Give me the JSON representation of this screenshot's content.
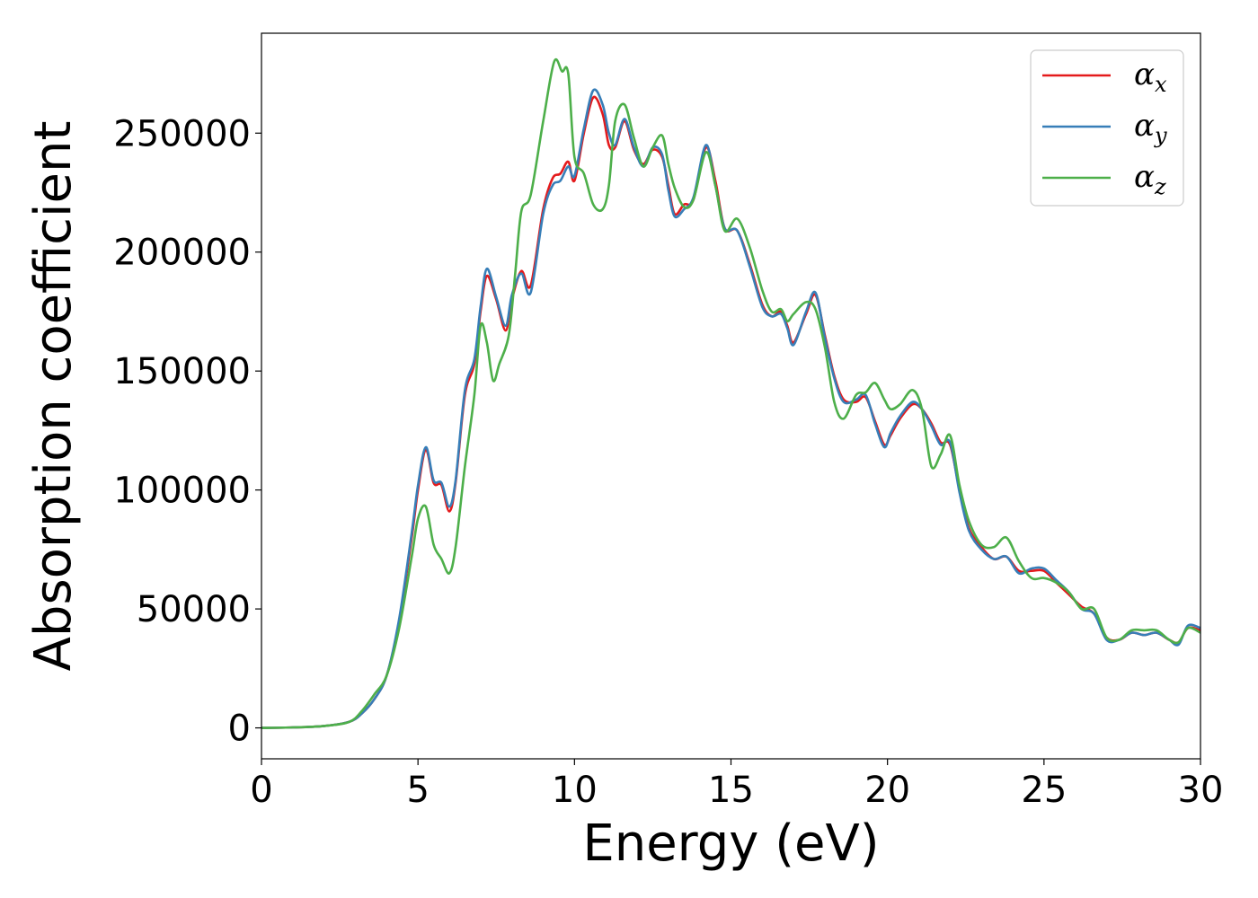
{
  "chart_data": {
    "type": "line",
    "xlabel": "Energy (eV)",
    "ylabel": "Absorption coefficient",
    "xlim": [
      0,
      30
    ],
    "ylim": [
      -13000,
      292000
    ],
    "xticks": [
      0,
      5,
      10,
      15,
      20,
      25,
      30
    ],
    "yticks": [
      0,
      50000,
      100000,
      150000,
      200000,
      250000
    ],
    "grid": false,
    "legend_position": "top-right",
    "series": [
      {
        "name": "α",
        "subscript": "x",
        "color": "#e41a1c",
        "x": [
          0,
          1,
          2,
          2.8,
          3.2,
          3.6,
          4.0,
          4.4,
          4.8,
          5.0,
          5.25,
          5.5,
          5.75,
          6.0,
          6.2,
          6.5,
          6.8,
          7.0,
          7.2,
          7.5,
          7.8,
          8.0,
          8.3,
          8.6,
          9.0,
          9.3,
          9.55,
          9.8,
          10.0,
          10.3,
          10.6,
          10.9,
          11.1,
          11.3,
          11.6,
          11.9,
          12.2,
          12.5,
          12.8,
          13.0,
          13.2,
          13.5,
          13.8,
          14.2,
          14.5,
          14.8,
          15.2,
          15.6,
          16.0,
          16.3,
          16.6,
          16.8,
          17.0,
          17.4,
          17.7,
          18.0,
          18.3,
          18.6,
          19.0,
          19.3,
          19.6,
          19.9,
          20.1,
          20.4,
          20.8,
          21.1,
          21.4,
          21.7,
          22.0,
          22.3,
          22.6,
          23.0,
          23.4,
          23.8,
          24.2,
          24.6,
          25.0,
          25.4,
          25.8,
          26.2,
          26.6,
          27.0,
          27.4,
          27.8,
          28.2,
          28.6,
          29.0,
          29.3,
          29.6,
          30.0
        ],
        "y": [
          0,
          200,
          800,
          2500,
          6000,
          12000,
          22000,
          45000,
          80000,
          100000,
          117000,
          103000,
          102000,
          91000,
          103000,
          140000,
          153000,
          175000,
          190000,
          180000,
          167000,
          180000,
          192000,
          186000,
          218000,
          231000,
          233000,
          238000,
          230000,
          250000,
          265000,
          258000,
          245000,
          244000,
          255000,
          243000,
          237000,
          243000,
          240000,
          228000,
          216000,
          220000,
          222000,
          244000,
          230000,
          210000,
          209000,
          195000,
          178000,
          173000,
          175000,
          169000,
          162000,
          174000,
          182000,
          165000,
          148000,
          138000,
          137000,
          139000,
          129000,
          119000,
          123000,
          130000,
          136000,
          134000,
          128000,
          120000,
          119000,
          100000,
          84000,
          76000,
          71000,
          72000,
          66000,
          66000,
          66000,
          61000,
          56000,
          51000,
          48000,
          38000,
          37000,
          40000,
          39000,
          40000,
          37000,
          36000,
          42000,
          41000
        ]
      },
      {
        "name": "α",
        "subscript": "y",
        "color": "#377eb8",
        "x": [
          0,
          1,
          2,
          2.8,
          3.2,
          3.6,
          4.0,
          4.4,
          4.8,
          5.0,
          5.25,
          5.5,
          5.75,
          6.0,
          6.2,
          6.5,
          6.8,
          7.0,
          7.2,
          7.5,
          7.8,
          8.0,
          8.3,
          8.6,
          9.0,
          9.3,
          9.55,
          9.8,
          10.0,
          10.3,
          10.6,
          10.9,
          11.1,
          11.3,
          11.6,
          11.9,
          12.2,
          12.5,
          12.8,
          13.0,
          13.2,
          13.5,
          13.8,
          14.2,
          14.5,
          14.8,
          15.2,
          15.6,
          16.0,
          16.3,
          16.6,
          16.8,
          17.0,
          17.4,
          17.7,
          18.0,
          18.3,
          18.6,
          19.0,
          19.3,
          19.6,
          19.9,
          20.1,
          20.4,
          20.8,
          21.1,
          21.4,
          21.7,
          22.0,
          22.3,
          22.6,
          23.0,
          23.4,
          23.8,
          24.2,
          24.6,
          25.0,
          25.4,
          25.8,
          26.2,
          26.6,
          27.0,
          27.4,
          27.8,
          28.2,
          28.6,
          29.0,
          29.3,
          29.6,
          30.0
        ],
        "y": [
          0,
          200,
          800,
          2500,
          6000,
          12000,
          22000,
          46000,
          82000,
          102000,
          118000,
          104000,
          103000,
          93000,
          104000,
          142000,
          155000,
          177000,
          193000,
          181000,
          169000,
          182000,
          191000,
          183000,
          216000,
          228000,
          230000,
          236000,
          232000,
          252000,
          268000,
          262000,
          250000,
          245000,
          256000,
          244000,
          236000,
          244000,
          241000,
          226000,
          215000,
          218000,
          223000,
          245000,
          228000,
          210000,
          209000,
          194000,
          177000,
          173000,
          174000,
          168000,
          161000,
          175000,
          183000,
          164000,
          147000,
          137000,
          138000,
          140000,
          128000,
          118000,
          124000,
          131000,
          137000,
          134000,
          127000,
          119000,
          120000,
          99000,
          83000,
          75000,
          71000,
          72000,
          65000,
          67000,
          67000,
          62000,
          57000,
          50000,
          48000,
          37000,
          37000,
          40000,
          39000,
          40000,
          37000,
          35000,
          43000,
          42000
        ]
      },
      {
        "name": "α",
        "subscript": "z",
        "color": "#4daf4a",
        "x": [
          0,
          1,
          2,
          2.8,
          3.2,
          3.6,
          4.0,
          4.4,
          4.8,
          5.0,
          5.25,
          5.5,
          5.75,
          6.0,
          6.2,
          6.5,
          6.8,
          7.0,
          7.2,
          7.4,
          7.6,
          7.9,
          8.1,
          8.3,
          8.6,
          9.0,
          9.35,
          9.6,
          9.8,
          10.0,
          10.3,
          10.6,
          10.9,
          11.1,
          11.3,
          11.6,
          11.9,
          12.2,
          12.5,
          12.8,
          13.0,
          13.2,
          13.5,
          13.8,
          14.2,
          14.5,
          14.8,
          15.2,
          15.6,
          16.0,
          16.3,
          16.6,
          16.8,
          17.0,
          17.4,
          17.7,
          18.0,
          18.3,
          18.6,
          19.0,
          19.3,
          19.6,
          19.9,
          20.1,
          20.4,
          20.8,
          21.1,
          21.4,
          21.7,
          22.0,
          22.3,
          22.6,
          23.0,
          23.4,
          23.8,
          24.2,
          24.6,
          25.0,
          25.4,
          25.8,
          26.2,
          26.6,
          27.0,
          27.4,
          27.8,
          28.2,
          28.6,
          29.0,
          29.3,
          29.6,
          30.0
        ],
        "y": [
          0,
          200,
          800,
          2500,
          7000,
          14000,
          22000,
          42000,
          72000,
          88000,
          93000,
          77000,
          71000,
          65000,
          76000,
          110000,
          140000,
          169000,
          162000,
          146000,
          153000,
          165000,
          190000,
          217000,
          224000,
          255000,
          280000,
          276000,
          275000,
          240000,
          233000,
          220000,
          218000,
          228000,
          255000,
          262000,
          248000,
          236000,
          244000,
          249000,
          237000,
          227000,
          219000,
          222000,
          242000,
          228000,
          209000,
          214000,
          202000,
          184000,
          175000,
          176000,
          171000,
          174000,
          179000,
          176000,
          160000,
          137000,
          130000,
          140000,
          141000,
          145000,
          138000,
          134000,
          136000,
          142000,
          134000,
          110000,
          115000,
          123000,
          102000,
          87000,
          77000,
          76000,
          80000,
          70000,
          63000,
          63000,
          61000,
          57000,
          50000,
          50000,
          38000,
          37000,
          41000,
          41000,
          41000,
          37000,
          36000,
          42000,
          40000
        ]
      }
    ]
  }
}
